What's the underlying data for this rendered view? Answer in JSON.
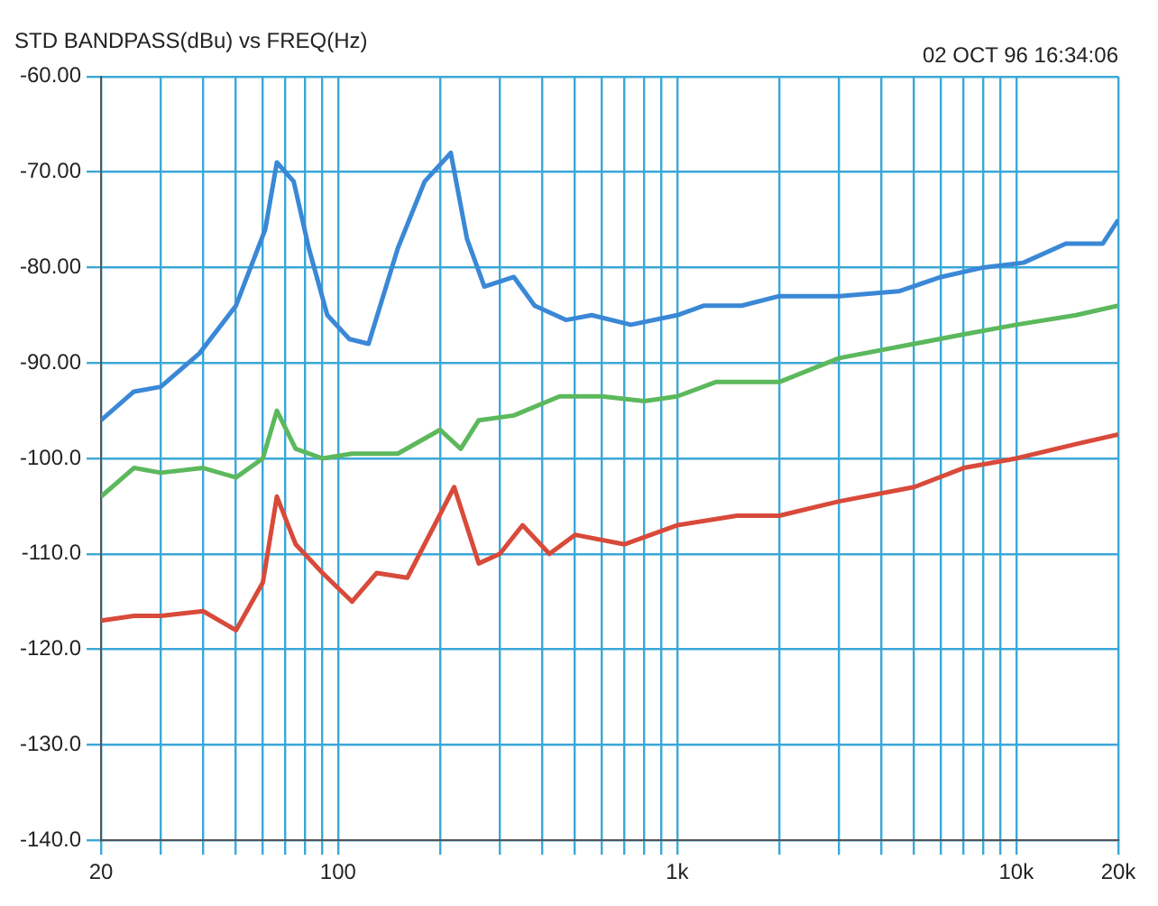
{
  "chart_data": {
    "type": "line",
    "title": "STD BANDPASS(dBu) vs FREQ(Hz)",
    "annotations": [
      "02 OCT 96 16:34:06"
    ],
    "log": "x",
    "grid": true,
    "legend": false,
    "line_style": "solid",
    "xlim": [
      20,
      20000
    ],
    "xticks": [
      {
        "value": 20,
        "label": "20"
      },
      {
        "value": 30,
        "label": null
      },
      {
        "value": 40,
        "label": null
      },
      {
        "value": 50,
        "label": null
      },
      {
        "value": 60,
        "label": null
      },
      {
        "value": 70,
        "label": null
      },
      {
        "value": 80,
        "label": null
      },
      {
        "value": 90,
        "label": null
      },
      {
        "value": 100,
        "label": "100"
      },
      {
        "value": 200,
        "label": null
      },
      {
        "value": 300,
        "label": null
      },
      {
        "value": 400,
        "label": null
      },
      {
        "value": 500,
        "label": null
      },
      {
        "value": 600,
        "label": null
      },
      {
        "value": 700,
        "label": null
      },
      {
        "value": 800,
        "label": null
      },
      {
        "value": 900,
        "label": null
      },
      {
        "value": 1000,
        "label": "1k"
      },
      {
        "value": 2000,
        "label": null
      },
      {
        "value": 3000,
        "label": null
      },
      {
        "value": 4000,
        "label": null
      },
      {
        "value": 5000,
        "label": null
      },
      {
        "value": 6000,
        "label": null
      },
      {
        "value": 7000,
        "label": null
      },
      {
        "value": 8000,
        "label": null
      },
      {
        "value": 9000,
        "label": null
      },
      {
        "value": 10000,
        "label": "10k"
      },
      {
        "value": 20000,
        "label": "20k"
      }
    ],
    "ylim": [
      -140,
      -60
    ],
    "yticks": [
      {
        "value": -140,
        "label": "-140.0"
      },
      {
        "value": -130,
        "label": "-130.0"
      },
      {
        "value": -120,
        "label": "-120.0"
      },
      {
        "value": -110,
        "label": "-110.0"
      },
      {
        "value": -100,
        "label": "-100.0"
      },
      {
        "value": -90,
        "label": "-90.00"
      },
      {
        "value": -80,
        "label": "-80.00"
      },
      {
        "value": -70,
        "label": "-70.00"
      },
      {
        "value": -60,
        "label": "-60.00"
      }
    ],
    "series": [
      {
        "color": "#3a88d6",
        "x": [
          20,
          25,
          30,
          39,
          50,
          61,
          66,
          74,
          82,
          93,
          108,
          123,
          150,
          180,
          215,
          240,
          270,
          330,
          380,
          470,
          560,
          730,
          1000,
          1200,
          1550,
          2000,
          3000,
          4500,
          6000,
          8000,
          10500,
          14000,
          18000,
          20000
        ],
        "values": [
          -96,
          -93,
          -92.5,
          -89,
          -84,
          -76,
          -69,
          -71,
          -78,
          -85,
          -87.5,
          -88,
          -78,
          -71,
          -68,
          -77,
          -82,
          -81,
          -84,
          -85.5,
          -85,
          -86,
          -85,
          -84,
          -84,
          -83,
          -83,
          -82.5,
          -81,
          -80,
          -79.5,
          -77.5,
          -77.5,
          -75
        ]
      },
      {
        "color": "#5cb85c",
        "x": [
          20,
          25,
          30,
          40,
          50,
          60,
          66,
          75,
          90,
          110,
          150,
          200,
          230,
          260,
          330,
          450,
          600,
          800,
          1000,
          1300,
          2000,
          3000,
          5000,
          7000,
          10000,
          15000,
          20000
        ],
        "values": [
          -104,
          -101,
          -101.5,
          -101,
          -102,
          -100,
          -95,
          -99,
          -100,
          -99.5,
          -99.5,
          -97,
          -99,
          -96,
          -95.5,
          -93.5,
          -93.5,
          -94,
          -93.5,
          -92,
          -92,
          -89.5,
          -88,
          -87,
          -86,
          -85,
          -84
        ]
      },
      {
        "color": "#d84a3a",
        "x": [
          20,
          25,
          30,
          40,
          50,
          60,
          66,
          75,
          90,
          110,
          130,
          160,
          220,
          260,
          300,
          350,
          420,
          500,
          700,
          1000,
          1500,
          2000,
          3000,
          5000,
          7000,
          10000,
          15000,
          20000
        ],
        "values": [
          -117,
          -116.5,
          -116.5,
          -116,
          -118,
          -113,
          -104,
          -109,
          -112,
          -115,
          -112,
          -112.5,
          -103,
          -111,
          -110,
          -107,
          -110,
          -108,
          -109,
          -107,
          -106,
          -106,
          -104.5,
          -103,
          -101,
          -100,
          -98.5,
          -97.5
        ]
      }
    ]
  }
}
